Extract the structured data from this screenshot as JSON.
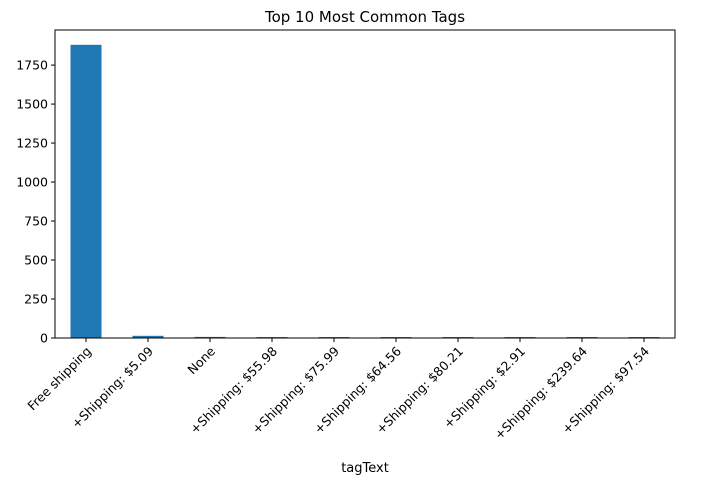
{
  "chart_data": {
    "type": "bar",
    "title": "Top 10 Most Common Tags",
    "xlabel": "tagText",
    "ylabel": "",
    "categories": [
      "Free shipping",
      "+Shipping: $5.09",
      "None",
      "+Shipping: $55.98",
      "+Shipping: $75.99",
      "+Shipping: $64.56",
      "+Shipping: $80.21",
      "+Shipping: $2.91",
      "+Shipping: $239.64",
      "+Shipping: $97.54"
    ],
    "values": [
      1880,
      14,
      7,
      6,
      6,
      6,
      6,
      6,
      6,
      6
    ],
    "ylim": [
      0,
      1975
    ],
    "yticks": [
      0,
      250,
      500,
      750,
      1000,
      1250,
      1500,
      1750
    ],
    "bar_color": "#1f77b4",
    "grid": false,
    "legend": "none"
  }
}
